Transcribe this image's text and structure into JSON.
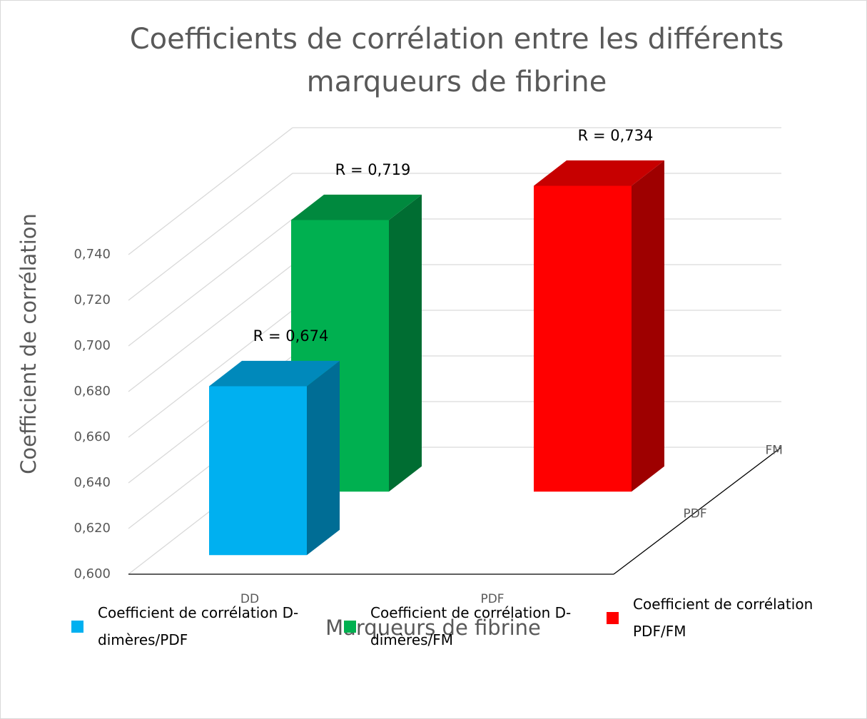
{
  "chart_data": {
    "type": "bar3d",
    "title": "Coefficients de corrélation entre les différents marqueurs de fibrine",
    "x_label": "Marqueurs de fibrine",
    "y_label": "Coefficient de corrélation",
    "categories": [
      "DD",
      "PDF"
    ],
    "depth_categories": [
      "PDF",
      "FM"
    ],
    "series": [
      {
        "name": "Coefficient de corrélation D-dimères/PDF",
        "color": "#00b0f0",
        "depth": "PDF",
        "values": [
          0.674,
          null
        ],
        "value_labels": [
          "R = 0,674",
          null
        ]
      },
      {
        "name": "Coefficient de corrélation D-dimères/FM",
        "color": "#00b050",
        "depth": "FM",
        "values": [
          0.719,
          null
        ],
        "value_labels": [
          "R = 0,719",
          null
        ]
      },
      {
        "name": "Coefficient de corrélation PDF/FM",
        "color": "#ff0000",
        "depth": "FM",
        "values": [
          null,
          0.734
        ],
        "value_labels": [
          null,
          "R = 0,734"
        ]
      }
    ],
    "ylim": [
      0.6,
      0.74
    ],
    "yticks": [
      {
        "value": 0.6,
        "label": "0,600"
      },
      {
        "value": 0.62,
        "label": "0,620"
      },
      {
        "value": 0.64,
        "label": "0,640"
      },
      {
        "value": 0.66,
        "label": "0,660"
      },
      {
        "value": 0.68,
        "label": "0,680"
      },
      {
        "value": 0.7,
        "label": "0,700"
      },
      {
        "value": 0.72,
        "label": "0,720"
      },
      {
        "value": 0.74,
        "label": "0,740"
      }
    ],
    "grid": true,
    "legend": "bottom"
  }
}
